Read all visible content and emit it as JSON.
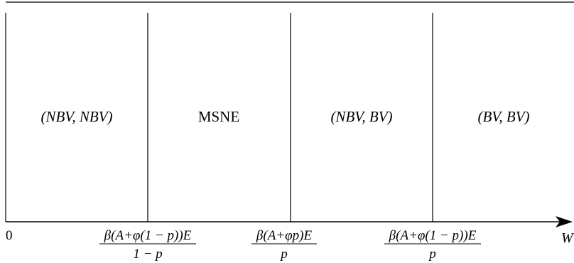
{
  "regions": [
    {
      "label": "(NBV, NBV)",
      "italic": true
    },
    {
      "label": "MSNE",
      "italic": false
    },
    {
      "label": "(NBV, BV)",
      "italic": true
    },
    {
      "label": "(BV, BV)",
      "italic": true
    }
  ],
  "axis": {
    "label": "W",
    "origin_label": "0"
  },
  "thresholds": [
    {
      "numerator": "β(A+φ(1 − p))E",
      "denominator": "1 − p"
    },
    {
      "numerator": "β(A+φp)E",
      "denominator": "p"
    },
    {
      "numerator": "β(A+φ(1 − p))E",
      "denominator": "p"
    }
  ]
}
